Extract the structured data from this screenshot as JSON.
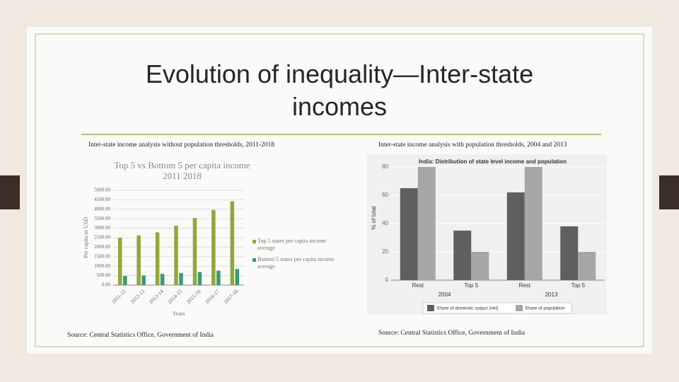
{
  "slide": {
    "title": "Evolution of inequality—Inter-state incomes",
    "left_caption": "Inter-state income analysis without population thresholds, 2011-2018",
    "right_caption": "Inter-state income analysis with population thresholds, 2004 and 2013",
    "left_source": "Source: Central Statistics Office, Government of India",
    "right_source": "Source: Central Statistics Office, Government of India"
  },
  "chart_data": [
    {
      "type": "bar",
      "title": "Top 5 vs Bottom 5 per capita income",
      "subtitle": "2011 2018",
      "x_label": "Years",
      "y_label": "Per capita in USD",
      "categories": [
        "2011-12",
        "2012-13",
        "2013-14",
        "2014-15",
        "2015-16",
        "2016-17",
        "2017-18"
      ],
      "series": [
        {
          "name": "Top 5 states per capita income average",
          "color": "#8fa83a",
          "values": [
            2500,
            2620,
            2780,
            3130,
            3540,
            3960,
            4420
          ]
        },
        {
          "name": "Bottom 5 states per capita income average",
          "color": "#3b9a72",
          "values": [
            480,
            510,
            590,
            640,
            690,
            760,
            850
          ]
        }
      ],
      "ylim": [
        0,
        5000
      ],
      "yticks": [
        {
          "value": 0,
          "label": "0.00"
        },
        {
          "value": 500,
          "label": "500.00"
        },
        {
          "value": 1000,
          "label": "1000.00"
        },
        {
          "value": 1500,
          "label": "1500.00"
        },
        {
          "value": 2000,
          "label": "2000.00"
        },
        {
          "value": 2500,
          "label": "2500.00"
        },
        {
          "value": 3000,
          "label": "3000.00"
        },
        {
          "value": 3500,
          "label": "3500.00"
        },
        {
          "value": 4000,
          "label": "4000.00"
        },
        {
          "value": 4500,
          "label": "4500.00"
        },
        {
          "value": 5000,
          "label": "5000.00"
        }
      ],
      "grid": true,
      "legend": "right"
    },
    {
      "type": "bar",
      "title": "India: Distribution of state level income and population",
      "y_label": "% of total",
      "categories": [
        "Rest",
        "Top 5",
        "Rest",
        "Top 5"
      ],
      "groups": [
        "2004",
        "2013"
      ],
      "series": [
        {
          "name": "Share of domestic output (net)",
          "color": "#5f5f5f",
          "values": [
            65,
            35,
            62,
            38
          ]
        },
        {
          "name": "Share of population",
          "color": "#a6a6a6",
          "values": [
            80,
            20,
            80,
            20
          ]
        }
      ],
      "ylim": [
        0,
        88
      ],
      "yticks": [
        0,
        20,
        40,
        60,
        80
      ],
      "grid": true,
      "legend": "bottom"
    }
  ]
}
